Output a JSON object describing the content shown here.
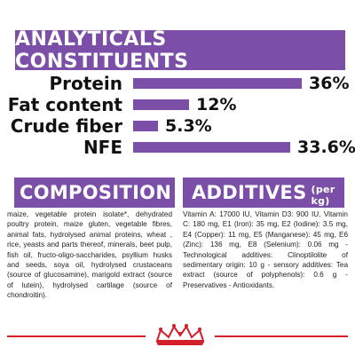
{
  "analytical": {
    "title": "ANALYTICALS CONSTITUENTS",
    "rows": [
      {
        "label": "Protein",
        "value": "36%",
        "fraction": 1.0
      },
      {
        "label": "Fat content",
        "value": "12%",
        "fraction": 0.333
      },
      {
        "label": "Crude fiber",
        "value": "5.3%",
        "fraction": 0.147
      },
      {
        "label": "NFE",
        "value": "33.6%",
        "fraction": 0.933
      }
    ]
  },
  "composition": {
    "title": "COMPOSITION",
    "text": "maize, vegetable protein isolate*, dehydrated poultry protein, maize gluten, vegetable fibres, animal fats, hydrolysed animal proteins, wheat , rice, yeasts and parts thereof, minerals, beet pulp, fish oil, fructo-oligo-saccharides, psyllium husks and seeds, soya oil, hydrolysed crustaceans (source of glucosamine), marigold extract (source of lutein), hydrolysed cartilage (source of chondroitin)."
  },
  "additives": {
    "title": "ADDITIVES",
    "subtitle": "(per kg)",
    "text": "Vitamin A: 17000 IU, Vitamin D3: 900 IU, Vitamin C: 180 mg, E1 (Iron): 35 mg, E2 (Iodine): 3.5 mg, E4 (Copper): 11 mg, E5 (Manganese): 45 mg, E6 (Zinc): 136 mg, E8 (Selenium): 0.06 mg - Technological additives: Clinoptilolite of sedimentary origin: 10 g - sensory additives: Tea extract (source of polyphenols): 0.6 g - Preservatives - Antioxidants."
  },
  "colors": {
    "accent": "#7b4fa8",
    "brand_red": "#d21f2a"
  },
  "icons": {
    "brand_logo": "royal-canin-crown-icon"
  }
}
